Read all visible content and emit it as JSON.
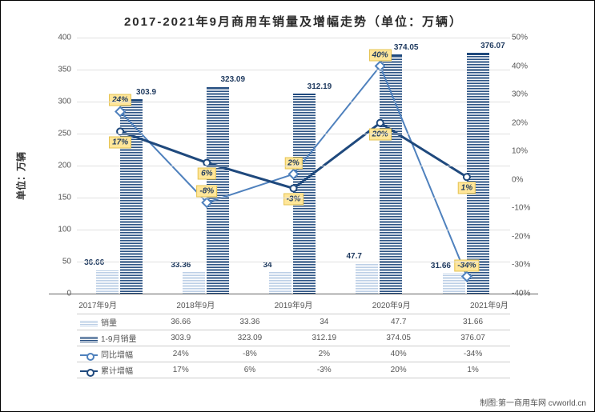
{
  "title": "2017-2021年9月商用车销量及增幅走势（单位：万辆）",
  "y_axis_left": {
    "label": "单位：万辆",
    "min": 0,
    "max": 400,
    "step": 50
  },
  "y_axis_right": {
    "min": -40,
    "max": 50,
    "step": 10,
    "suffix": "%"
  },
  "categories": [
    "2017年9月",
    "2018年9月",
    "2019年9月",
    "2020年9月",
    "2021年9月"
  ],
  "series": {
    "sales": {
      "label": "销量",
      "color": "#b9cde5",
      "values": [
        36.66,
        33.36,
        34,
        47.7,
        31.66
      ]
    },
    "cum_sales": {
      "label": "1-9月销量",
      "color": "#1f497d",
      "values": [
        303.9,
        323.09,
        312.19,
        374.05,
        376.07
      ]
    },
    "yoy": {
      "label": "同比增幅",
      "color": "#4f81bd",
      "values": [
        24,
        -8,
        2,
        40,
        -34
      ],
      "suffix": "%"
    },
    "cum_yoy": {
      "label": "累计增幅",
      "color": "#1f497d",
      "values": [
        17,
        6,
        -3,
        20,
        1
      ],
      "suffix": "%"
    }
  },
  "colors": {
    "grid": "#e0e0e0",
    "label_bg": "#ffe699",
    "label_border": "#e6c454",
    "text": "#1f3a5f"
  },
  "credit": "制图:第一商用车网 cvworld.cn"
}
